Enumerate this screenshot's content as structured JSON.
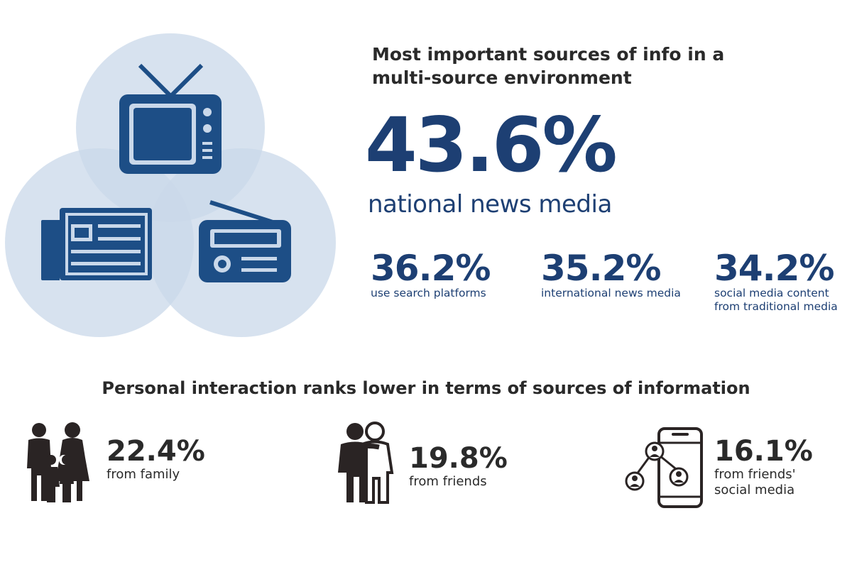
{
  "header": {
    "title": "Most important sources of info in a multi-source environment"
  },
  "main_stat": {
    "value": "43.6%",
    "label": "national news media"
  },
  "media_stats": [
    {
      "value": "36.2%",
      "label": "use search platforms"
    },
    {
      "value": "35.2%",
      "label": "international news media"
    },
    {
      "value": "34.2%",
      "label": "social media content\nfrom traditional media"
    }
  ],
  "personal": {
    "title": "Personal interaction ranks lower in terms of sources of information",
    "items": [
      {
        "value": "22.4%",
        "label": "from family",
        "icon": "family-icon"
      },
      {
        "value": "19.8%",
        "label": "from friends",
        "icon": "friends-icon"
      },
      {
        "value": "16.1%",
        "label": "from friends'\nsocial media",
        "icon": "phone-network-icon"
      }
    ]
  },
  "colors": {
    "accent": "#1d3f73",
    "circle_fill": "#c9d8ea",
    "text_dark": "#2a2a2a"
  }
}
